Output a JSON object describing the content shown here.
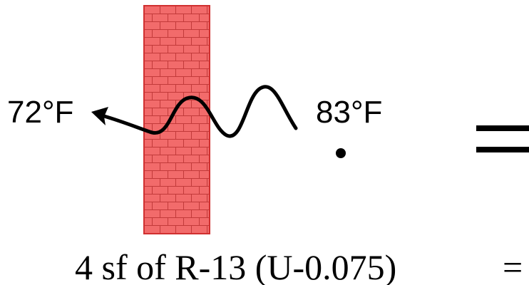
{
  "labels": {
    "left_temp": "72°F",
    "right_temp": "83°F",
    "caption": "4 sf of R-13 (U-0.075)",
    "equals": "="
  }
}
